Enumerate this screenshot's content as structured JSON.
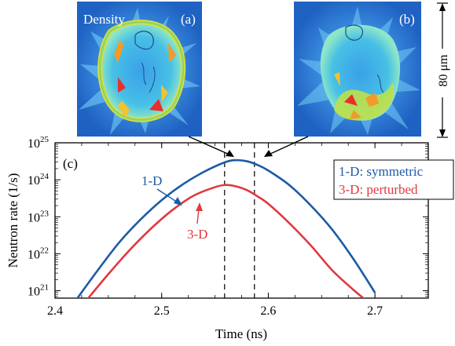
{
  "insets": [
    {
      "label": "(a)",
      "title": "Density"
    },
    {
      "label": "(b)",
      "title": ""
    }
  ],
  "scale_bar": {
    "label": "80 μm"
  },
  "colors": {
    "symmetric": "#1c5aa6",
    "perturbed": "#e0393f"
  },
  "chart_data": {
    "type": "line",
    "panel_label": "(c)",
    "xlabel": "Time (ns)",
    "ylabel": "Neutron rate (1/s)",
    "xlim": [
      2.4,
      2.75
    ],
    "ylim_log10": [
      20.8,
      25
    ],
    "x_ticks": [
      2.4,
      2.5,
      2.6,
      2.7
    ],
    "x_tick_labels": [
      "2.4",
      "2.5",
      "2.6",
      "2.7"
    ],
    "y_ticks_log10": [
      21,
      22,
      23,
      24,
      25
    ],
    "y_tick_labels": [
      {
        "base": "10",
        "exp": "21"
      },
      {
        "base": "10",
        "exp": "22"
      },
      {
        "base": "10",
        "exp": "23"
      },
      {
        "base": "10",
        "exp": "24"
      },
      {
        "base": "10",
        "exp": "25"
      }
    ],
    "y_scale": "log",
    "legend": [
      "1-D: symmetric",
      "3-D: perturbed"
    ],
    "legend_position": "right",
    "vlines": [
      2.559,
      2.587
    ],
    "series": [
      {
        "name": "1-D: symmetric",
        "annotation": "1-D",
        "x": [
          2.42,
          2.44,
          2.46,
          2.48,
          2.5,
          2.52,
          2.54,
          2.56,
          2.57,
          2.58,
          2.59,
          2.6,
          2.62,
          2.64,
          2.66,
          2.68,
          2.7
        ],
        "log10_y": [
          20.76,
          21.55,
          22.3,
          22.92,
          23.45,
          23.88,
          24.22,
          24.48,
          24.53,
          24.5,
          24.4,
          24.25,
          23.85,
          23.3,
          22.65,
          21.85,
          20.95
        ]
      },
      {
        "name": "3-D: perturbed",
        "annotation": "3-D",
        "x": [
          2.43,
          2.45,
          2.47,
          2.49,
          2.51,
          2.53,
          2.55,
          2.56,
          2.57,
          2.58,
          2.59,
          2.6,
          2.62,
          2.64,
          2.66,
          2.68,
          2.69
        ],
        "log10_y": [
          20.76,
          21.45,
          22.1,
          22.68,
          23.18,
          23.57,
          23.8,
          23.86,
          23.82,
          23.72,
          23.55,
          23.35,
          22.82,
          22.22,
          21.55,
          21.02,
          20.78
        ]
      }
    ]
  }
}
